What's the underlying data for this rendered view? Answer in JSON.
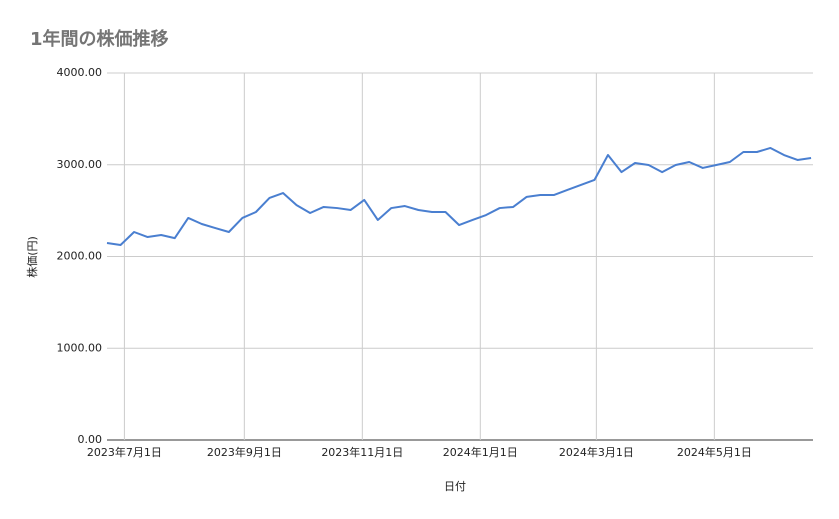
{
  "chart_data": {
    "type": "line",
    "title": "1年間の株価推移",
    "x_label": "日付",
    "y_label": "株価(円)",
    "x": [
      "2023-06-22",
      "2023-06-29",
      "2023-07-06",
      "2023-07-13",
      "2023-07-20",
      "2023-07-27",
      "2023-08-03",
      "2023-08-10",
      "2023-08-17",
      "2023-08-24",
      "2023-08-31",
      "2023-09-07",
      "2023-09-14",
      "2023-09-21",
      "2023-09-28",
      "2023-10-05",
      "2023-10-12",
      "2023-10-19",
      "2023-10-26",
      "2023-11-02",
      "2023-11-09",
      "2023-11-16",
      "2023-11-23",
      "2023-11-30",
      "2023-12-07",
      "2023-12-14",
      "2023-12-21",
      "2023-12-28",
      "2024-01-04",
      "2024-01-11",
      "2024-01-18",
      "2024-01-25",
      "2024-02-01",
      "2024-02-08",
      "2024-02-15",
      "2024-02-22",
      "2024-02-29",
      "2024-03-07",
      "2024-03-14",
      "2024-03-21",
      "2024-03-28",
      "2024-04-04",
      "2024-04-11",
      "2024-04-18",
      "2024-04-25",
      "2024-05-02",
      "2024-05-09",
      "2024-05-16",
      "2024-05-23",
      "2024-05-30",
      "2024-06-06",
      "2024-06-13",
      "2024-06-20"
    ],
    "series": [
      {
        "name": "株価(円)",
        "color": "#4a7fd0",
        "values": [
          2147,
          2125,
          2267,
          2212,
          2234,
          2200,
          2420,
          2354,
          2310,
          2267,
          2420,
          2485,
          2638,
          2692,
          2560,
          2474,
          2540,
          2528,
          2507,
          2616,
          2398,
          2528,
          2550,
          2507,
          2485,
          2485,
          2343,
          2398,
          2452,
          2528,
          2540,
          2650,
          2670,
          2670,
          2725,
          2780,
          2834,
          3106,
          2920,
          3019,
          2997,
          2920,
          2997,
          3030,
          2965,
          2997,
          3030,
          3139,
          3139,
          3183,
          3106,
          3052,
          3074
        ]
      }
    ],
    "xlim": [
      "2023-06-22",
      "2024-06-21"
    ],
    "xticks": [
      {
        "value": "2023-07-01",
        "label": "2023年7月1日"
      },
      {
        "value": "2023-09-01",
        "label": "2023年9月1日"
      },
      {
        "value": "2023-11-01",
        "label": "2023年11月1日"
      },
      {
        "value": "2024-01-01",
        "label": "2024年1月1日"
      },
      {
        "value": "2024-03-01",
        "label": "2024年3月1日"
      },
      {
        "value": "2024-05-01",
        "label": "2024年5月1日"
      }
    ],
    "ylim": [
      0,
      4000
    ],
    "yticks": [
      {
        "value": 0,
        "label": "0.00"
      },
      {
        "value": 1000,
        "label": "1000.00"
      },
      {
        "value": 2000,
        "label": "2000.00"
      },
      {
        "value": 3000,
        "label": "3000.00"
      },
      {
        "value": 4000,
        "label": "4000.00"
      }
    ],
    "grid": true
  }
}
